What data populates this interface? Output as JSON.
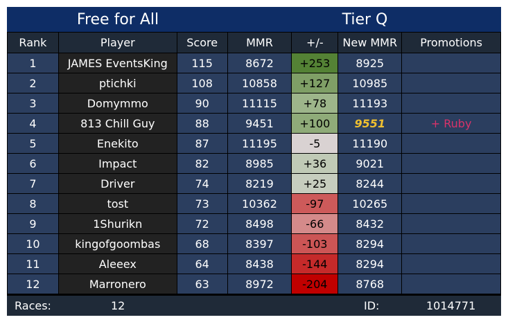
{
  "header": {
    "mode": "Free for All",
    "tier": "Tier Q"
  },
  "columns": [
    "Rank",
    "Player",
    "Score",
    "MMR",
    "+/-",
    "New MMR",
    "Promotions"
  ],
  "rows": [
    {
      "rank": "1",
      "player": "JAMES EventsKing",
      "score": "115",
      "mmr": "8672",
      "delta": "+253",
      "new_mmr": "8925",
      "promotion": "",
      "delta_color": "#548235"
    },
    {
      "rank": "2",
      "player": "ptichki",
      "score": "108",
      "mmr": "10858",
      "delta": "+127",
      "new_mmr": "10985",
      "promotion": "",
      "delta_color": "#7f9f66"
    },
    {
      "rank": "3",
      "player": "Domymmo",
      "score": "90",
      "mmr": "11115",
      "delta": "+78",
      "new_mmr": "11193",
      "promotion": "",
      "delta_color": "#9db58a"
    },
    {
      "rank": "4",
      "player": "813 Chill Guy",
      "score": "88",
      "mmr": "9451",
      "delta": "+100",
      "new_mmr": "9551",
      "promotion": "+ Ruby",
      "delta_color": "#8fab79"
    },
    {
      "rank": "5",
      "player": "Enekito",
      "score": "87",
      "mmr": "11195",
      "delta": "-5",
      "new_mmr": "11190",
      "promotion": "",
      "delta_color": "#d9d2d2"
    },
    {
      "rank": "6",
      "player": "Impact",
      "score": "82",
      "mmr": "8985",
      "delta": "+36",
      "new_mmr": "9021",
      "promotion": "",
      "delta_color": "#c0cab6"
    },
    {
      "rank": "7",
      "player": "Driver",
      "score": "74",
      "mmr": "8219",
      "delta": "+25",
      "new_mmr": "8244",
      "promotion": "",
      "delta_color": "#c6cdbe"
    },
    {
      "rank": "8",
      "player": "tost",
      "score": "73",
      "mmr": "10362",
      "delta": "-97",
      "new_mmr": "10265",
      "promotion": "",
      "delta_color": "#cd5a5a"
    },
    {
      "rank": "9",
      "player": "1Shurikn",
      "score": "72",
      "mmr": "8498",
      "delta": "-66",
      "new_mmr": "8432",
      "promotion": "",
      "delta_color": "#d48a8a"
    },
    {
      "rank": "10",
      "player": "kingofgoombas",
      "score": "68",
      "mmr": "8397",
      "delta": "-103",
      "new_mmr": "8294",
      "promotion": "",
      "delta_color": "#cc5555"
    },
    {
      "rank": "11",
      "player": "Aleeex",
      "score": "64",
      "mmr": "8438",
      "delta": "-144",
      "new_mmr": "8294",
      "promotion": "",
      "delta_color": "#c52a2a"
    },
    {
      "rank": "12",
      "player": "Marronero",
      "score": "63",
      "mmr": "8972",
      "delta": "-204",
      "new_mmr": "8768",
      "promotion": "",
      "delta_color": "#c00000"
    }
  ],
  "footer": {
    "races_label": "Races:",
    "races_value": "12",
    "id_label": "ID:",
    "id_value": "1014771"
  }
}
